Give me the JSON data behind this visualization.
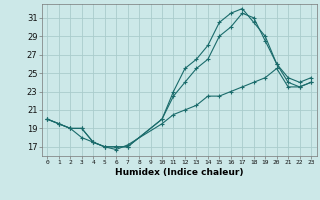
{
  "xlabel": "Humidex (Indice chaleur)",
  "background_color": "#cce8e8",
  "grid_color": "#aacccc",
  "line_color": "#1a6b6b",
  "xlim": [
    -0.5,
    23.5
  ],
  "ylim": [
    16.0,
    32.5
  ],
  "xticks": [
    0,
    1,
    2,
    3,
    4,
    5,
    6,
    7,
    8,
    9,
    10,
    11,
    12,
    13,
    14,
    15,
    16,
    17,
    18,
    19,
    20,
    21,
    22,
    23
  ],
  "yticks": [
    17,
    19,
    21,
    23,
    25,
    27,
    29,
    31
  ],
  "line1_x": [
    0,
    1,
    2,
    3,
    4,
    5,
    6,
    7,
    10,
    11,
    12,
    13,
    14,
    15,
    16,
    17,
    18,
    19,
    20,
    21,
    22,
    23
  ],
  "line1_y": [
    20,
    19.5,
    19,
    18.0,
    17.5,
    17.0,
    16.7,
    17.2,
    19.5,
    20.5,
    21.0,
    21.5,
    22.5,
    22.5,
    23.0,
    23.5,
    24.0,
    24.5,
    25.5,
    23.5,
    23.5,
    24.0
  ],
  "line2_x": [
    0,
    1,
    2,
    3,
    4,
    5,
    6,
    7,
    10,
    11,
    12,
    13,
    14,
    15,
    16,
    17,
    18,
    19,
    20,
    21,
    22,
    23
  ],
  "line2_y": [
    20,
    19.5,
    19,
    19,
    17.5,
    17,
    17,
    17,
    20.0,
    23.0,
    25.5,
    26.5,
    28.0,
    30.5,
    31.5,
    32.0,
    30.5,
    29.0,
    26.0,
    24.0,
    23.5,
    24.0
  ],
  "line3_x": [
    0,
    1,
    2,
    3,
    4,
    5,
    6,
    7,
    10,
    11,
    12,
    13,
    14,
    15,
    16,
    17,
    18,
    19,
    20,
    21,
    22,
    23
  ],
  "line3_y": [
    20,
    19.5,
    19,
    19,
    17.5,
    17,
    17,
    17,
    20.0,
    22.5,
    24.0,
    25.5,
    26.5,
    29.0,
    30.0,
    31.5,
    31.0,
    28.5,
    26.0,
    24.5,
    24.0,
    24.5
  ]
}
